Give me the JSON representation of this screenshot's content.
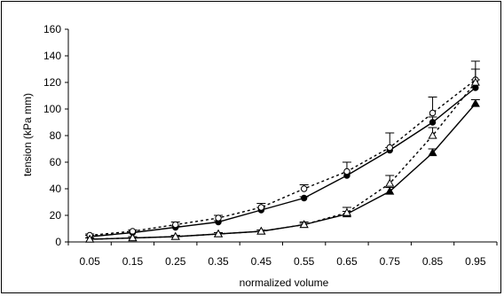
{
  "chart_data": {
    "type": "line",
    "title": "",
    "xlabel": "normalized volume",
    "ylabel": "tension (kPa mm)",
    "x": [
      "0.05",
      "0.15",
      "0.25",
      "0.35",
      "0.45",
      "0.55",
      "0.65",
      "0.75",
      "0.85",
      "0.95"
    ],
    "ylim": [
      0,
      160
    ],
    "yticks": [
      "0",
      "20",
      "40",
      "60",
      "80",
      "100",
      "120",
      "140",
      "160"
    ],
    "grid": false,
    "legend": "none",
    "series": [
      {
        "marker": "filled-circle",
        "line": "solid",
        "color": "#000000",
        "values": [
          4,
          7,
          11,
          15,
          24,
          33,
          50,
          69,
          90,
          116
        ],
        "error": [
          1,
          1,
          1,
          1,
          2,
          1,
          2,
          2,
          4,
          6
        ]
      },
      {
        "marker": "open-circle",
        "line": "dotted",
        "color": "#000000",
        "values": [
          5,
          8,
          13,
          18,
          26,
          40,
          53,
          71,
          97,
          122
        ],
        "error": [
          1,
          1,
          2,
          2,
          3,
          3,
          7,
          11,
          12,
          14
        ]
      },
      {
        "marker": "filled-triangle",
        "line": "solid",
        "color": "#000000",
        "values": [
          2,
          3,
          4,
          6,
          8,
          13,
          21,
          38,
          67,
          104
        ],
        "error": [
          1,
          1,
          1,
          1,
          1,
          1,
          2,
          3,
          3,
          3
        ]
      },
      {
        "marker": "open-triangle",
        "line": "dotted",
        "color": "#000000",
        "values": [
          2,
          3,
          4,
          6,
          8,
          13,
          22,
          44,
          80,
          120
        ],
        "error": [
          1,
          1,
          1,
          1,
          1,
          2,
          4,
          6,
          6,
          10
        ]
      }
    ]
  }
}
